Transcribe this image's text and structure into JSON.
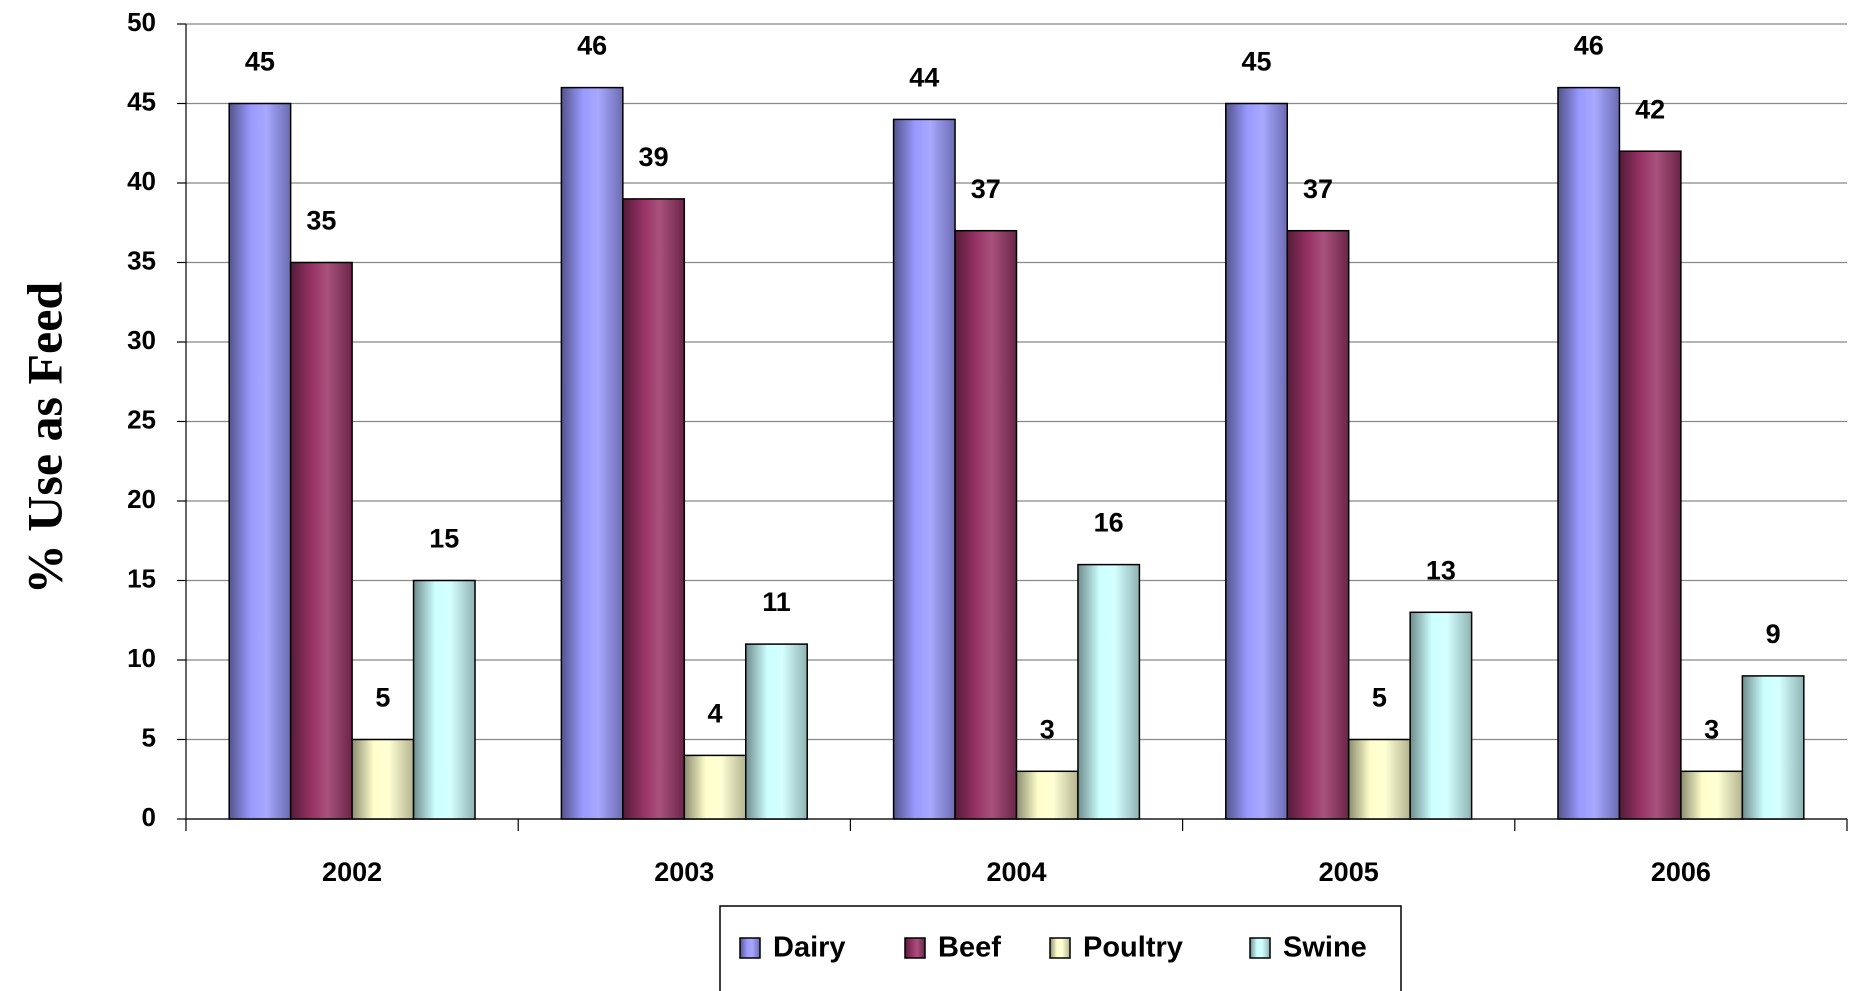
{
  "chart_data": {
    "type": "bar",
    "y_label": "% Use as Feed",
    "categories": [
      "2002",
      "2003",
      "2004",
      "2005",
      "2006"
    ],
    "series": [
      {
        "name": "Dairy",
        "color": "#9999ff",
        "values": [
          45,
          46,
          44,
          45,
          46
        ]
      },
      {
        "name": "Beef",
        "color": "#993366",
        "values": [
          35,
          39,
          37,
          37,
          42
        ]
      },
      {
        "name": "Poultry",
        "color": "#ffffcc",
        "values": [
          5,
          4,
          3,
          5,
          3
        ]
      },
      {
        "name": "Swine",
        "color": "#ccffff",
        "values": [
          15,
          11,
          16,
          13,
          9
        ]
      }
    ],
    "ylim": [
      0,
      50
    ],
    "yticks": [
      0,
      5,
      10,
      15,
      20,
      25,
      30,
      35,
      40,
      45,
      50
    ],
    "grid": true,
    "legend": "bottom"
  }
}
